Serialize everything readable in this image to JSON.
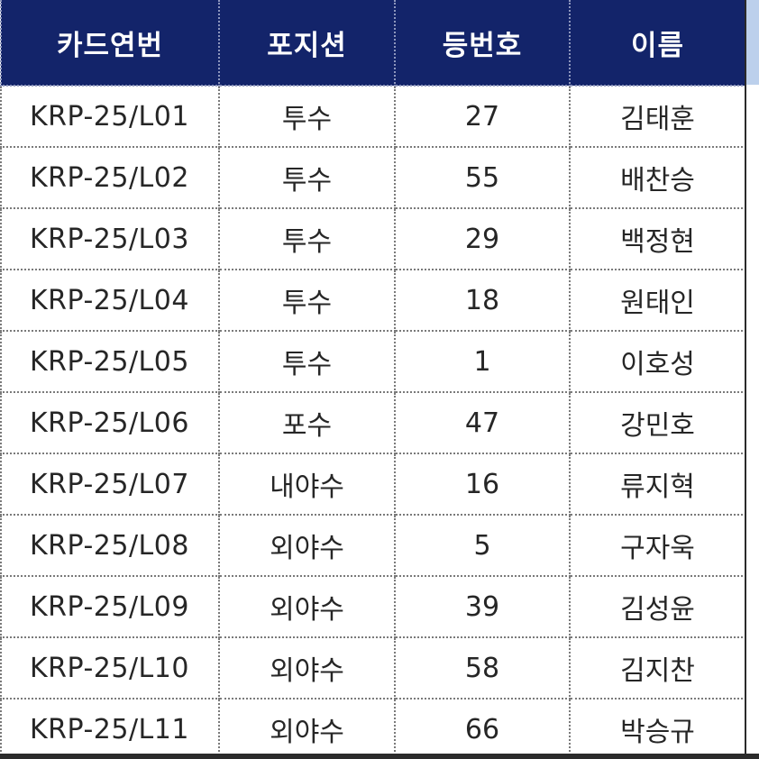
{
  "table": {
    "headers": [
      "카드연번",
      "포지션",
      "등번호",
      "이름"
    ],
    "rows": [
      {
        "card_no": "KRP-25/L01",
        "position": "투수",
        "number": "27",
        "name": "김태훈"
      },
      {
        "card_no": "KRP-25/L02",
        "position": "투수",
        "number": "55",
        "name": "배찬승"
      },
      {
        "card_no": "KRP-25/L03",
        "position": "투수",
        "number": "29",
        "name": "백정현"
      },
      {
        "card_no": "KRP-25/L04",
        "position": "투수",
        "number": "18",
        "name": "원태인"
      },
      {
        "card_no": "KRP-25/L05",
        "position": "투수",
        "number": "1",
        "name": "이호성"
      },
      {
        "card_no": "KRP-25/L06",
        "position": "포수",
        "number": "47",
        "name": "강민호"
      },
      {
        "card_no": "KRP-25/L07",
        "position": "내야수",
        "number": "16",
        "name": "류지혁"
      },
      {
        "card_no": "KRP-25/L08",
        "position": "외야수",
        "number": "5",
        "name": "구자욱"
      },
      {
        "card_no": "KRP-25/L09",
        "position": "외야수",
        "number": "39",
        "name": "김성윤"
      },
      {
        "card_no": "KRP-25/L10",
        "position": "외야수",
        "number": "58",
        "name": "김지찬"
      },
      {
        "card_no": "KRP-25/L11",
        "position": "외야수",
        "number": "66",
        "name": "박승규"
      }
    ]
  },
  "colors": {
    "header_bg": "#13246a",
    "header_text": "#ffffff",
    "cell_text": "#262626",
    "side_strip": "#bcd0ec"
  }
}
